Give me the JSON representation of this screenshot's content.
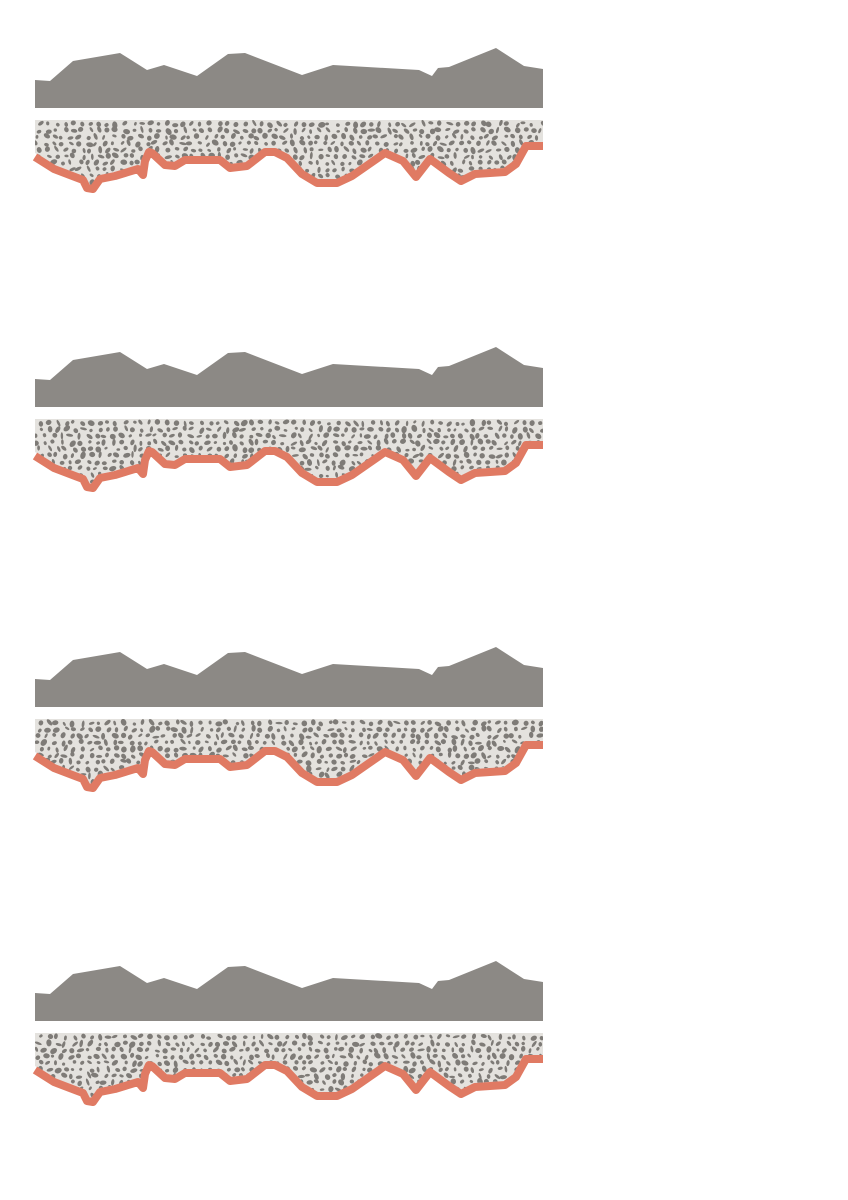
{
  "diagram": {
    "panel_count": 4,
    "colors": {
      "top_layer": "#8c8985",
      "aggregate_base": "#e4e2de",
      "aggregate_stones": "#7e7b77",
      "base_line": "#e07a63",
      "background": "#ffffff"
    },
    "panels": [
      {
        "id": "panel-1"
      },
      {
        "id": "panel-2"
      },
      {
        "id": "panel-3"
      },
      {
        "id": "panel-4"
      }
    ]
  }
}
